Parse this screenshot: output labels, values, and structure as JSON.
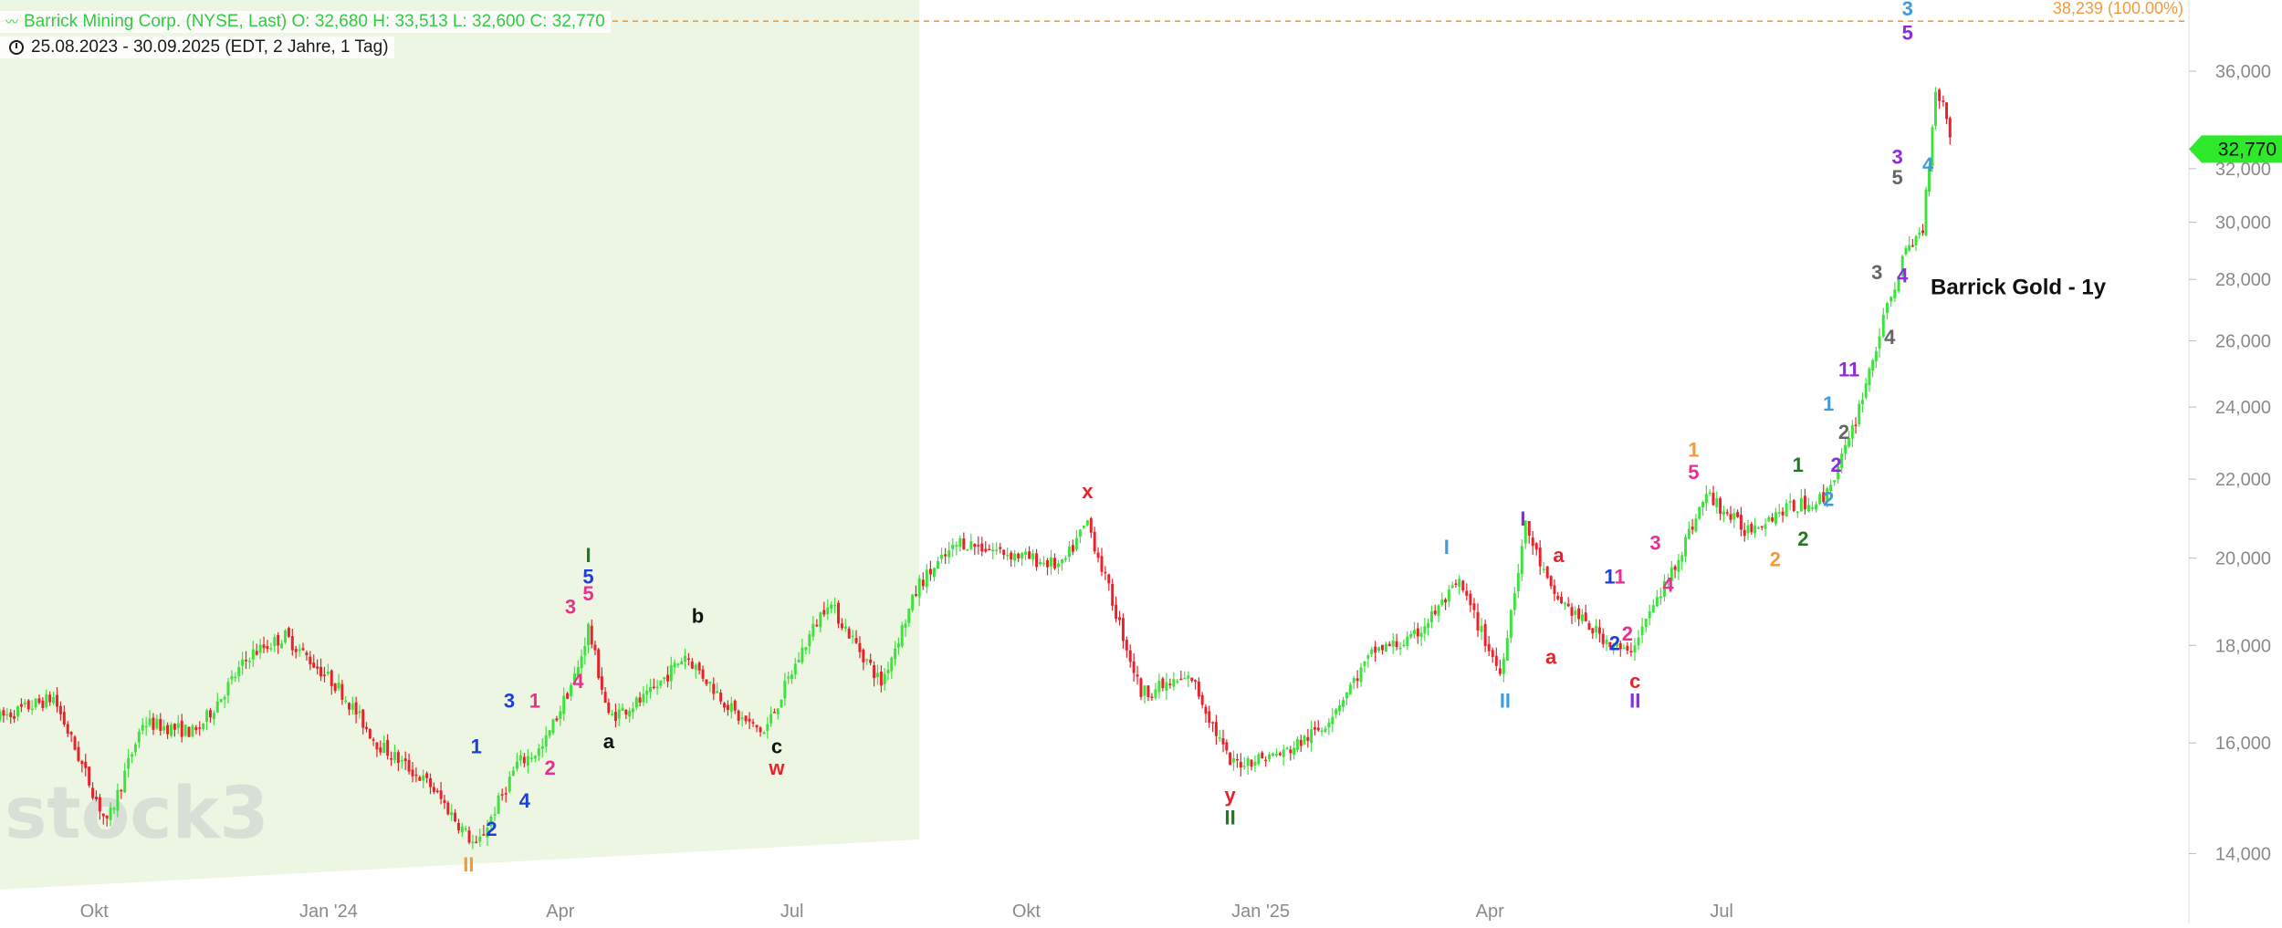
{
  "header": {
    "instrument_line": "Barrick Mining Corp. (NYSE, Last)  O: 32,680  H: 33,513  L: 32,600  C: 32,770",
    "range_line": "25.08.2023 - 30.09.2025  (EDT, 2 Jahre, 1 Tag)"
  },
  "watermark": "stock3",
  "colors": {
    "up_candle": "#3ee23e",
    "down_candle": "#e8212a",
    "shaded_region": "#edf6e2",
    "reference_line": "#f39a3b",
    "price_badge": "#2ee82a"
  },
  "chart_data": {
    "type": "candlestick",
    "title": "",
    "x_range": [
      "2023-08-25",
      "2025-09-30"
    ],
    "y_scale": "log",
    "y_range": [
      13300,
      38800
    ],
    "y_ticks": [
      14000,
      16000,
      18000,
      20000,
      22000,
      24000,
      26000,
      28000,
      30000,
      32000,
      36000
    ],
    "y_tick_labels": [
      "14,000",
      "16,000",
      "18,000",
      "20,000",
      "22,000",
      "24,000",
      "26,000",
      "28,000",
      "30,000",
      "32,000",
      "36,000"
    ],
    "x_ticks": [
      {
        "label": "Okt",
        "date": "2023-10-01"
      },
      {
        "label": "Jan '24",
        "date": "2024-01-01"
      },
      {
        "label": "Apr",
        "date": "2024-04-01"
      },
      {
        "label": "Jul",
        "date": "2024-07-01"
      },
      {
        "label": "Okt",
        "date": "2024-10-01"
      },
      {
        "label": "Jan '25",
        "date": "2025-01-01"
      },
      {
        "label": "Apr",
        "date": "2025-04-01"
      },
      {
        "label": "Jul",
        "date": "2025-07-01"
      }
    ],
    "last_price": 32770,
    "last_price_label": "32,770",
    "reference_level": 38239,
    "reference_label": "38,239 (100.00%)",
    "shaded_period": [
      "2023-08-25",
      "2024-08-20"
    ],
    "price_path": [
      [
        "2023-08-25",
        16500
      ],
      [
        "2023-09-15",
        16900
      ],
      [
        "2023-10-06",
        14500
      ],
      [
        "2023-10-20",
        16400
      ],
      [
        "2023-11-10",
        16200
      ],
      [
        "2023-12-01",
        17800
      ],
      [
        "2023-12-15",
        18200
      ],
      [
        "2024-01-05",
        17100
      ],
      [
        "2024-01-20",
        16000
      ],
      [
        "2024-02-10",
        15200
      ],
      [
        "2024-02-28",
        14100
      ],
      [
        "2024-03-15",
        15600
      ],
      [
        "2024-03-25",
        15900
      ],
      [
        "2024-04-08",
        17500
      ],
      [
        "2024-04-12",
        18400
      ],
      [
        "2024-04-20",
        16500
      ],
      [
        "2024-05-05",
        16900
      ],
      [
        "2024-05-20",
        17800
      ],
      [
        "2024-06-10",
        16500
      ],
      [
        "2024-06-20",
        16200
      ],
      [
        "2024-07-05",
        17900
      ],
      [
        "2024-07-15",
        19000
      ],
      [
        "2024-08-05",
        17200
      ],
      [
        "2024-08-20",
        19400
      ],
      [
        "2024-09-05",
        20400
      ],
      [
        "2024-09-25",
        20100
      ],
      [
        "2024-10-15",
        19800
      ],
      [
        "2024-10-25",
        20900
      ],
      [
        "2024-11-15",
        17000
      ],
      [
        "2024-12-05",
        17300
      ],
      [
        "2024-12-20",
        15600
      ],
      [
        "2025-01-10",
        15800
      ],
      [
        "2025-01-25",
        16300
      ],
      [
        "2025-02-15",
        17900
      ],
      [
        "2025-03-01",
        18100
      ],
      [
        "2025-03-20",
        19400
      ],
      [
        "2025-04-05",
        17400
      ],
      [
        "2025-04-15",
        20800
      ],
      [
        "2025-04-25",
        19200
      ],
      [
        "2025-05-10",
        18400
      ],
      [
        "2025-05-25",
        17800
      ],
      [
        "2025-06-10",
        19500
      ],
      [
        "2025-06-25",
        21600
      ],
      [
        "2025-07-10",
        20700
      ],
      [
        "2025-07-25",
        21200
      ],
      [
        "2025-08-10",
        21500
      ],
      [
        "2025-08-20",
        23000
      ],
      [
        "2025-09-01",
        26200
      ],
      [
        "2025-09-10",
        28700
      ],
      [
        "2025-09-18",
        29800
      ],
      [
        "2025-09-23",
        35200
      ],
      [
        "2025-09-26",
        34600
      ],
      [
        "2025-09-30",
        32770
      ]
    ],
    "wave_labels": [
      {
        "text": "II",
        "date": "2024-02-25",
        "price": 13700,
        "color": "#f39a3b"
      },
      {
        "text": "1",
        "date": "2024-02-28",
        "price": 15800,
        "color": "#1f3ed6"
      },
      {
        "text": "2",
        "date": "2024-03-05",
        "price": 14300,
        "color": "#1f3ed6"
      },
      {
        "text": "3",
        "date": "2024-03-12",
        "price": 16700,
        "color": "#1f3ed6"
      },
      {
        "text": "4",
        "date": "2024-03-18",
        "price": 14800,
        "color": "#1f3ed6"
      },
      {
        "text": "1",
        "date": "2024-03-22",
        "price": 16700,
        "color": "#e8308f"
      },
      {
        "text": "2",
        "date": "2024-03-28",
        "price": 15400,
        "color": "#e8308f"
      },
      {
        "text": "3",
        "date": "2024-04-05",
        "price": 18700,
        "color": "#e8308f"
      },
      {
        "text": "4",
        "date": "2024-04-08",
        "price": 17100,
        "color": "#e8308f"
      },
      {
        "text": "5",
        "date": "2024-04-12",
        "price": 19000,
        "color": "#e8308f"
      },
      {
        "text": "5",
        "date": "2024-04-12",
        "price": 19400,
        "color": "#1f3ed6"
      },
      {
        "text": "I",
        "date": "2024-04-12",
        "price": 19900,
        "color": "#1f7a1f"
      },
      {
        "text": "a",
        "date": "2024-04-20",
        "price": 15900,
        "color": "#111111"
      },
      {
        "text": "b",
        "date": "2024-05-25",
        "price": 18500,
        "color": "#111111"
      },
      {
        "text": "c",
        "date": "2024-06-25",
        "price": 15800,
        "color": "#111111"
      },
      {
        "text": "w",
        "date": "2024-06-25",
        "price": 15400,
        "color": "#e8212a"
      },
      {
        "text": "x",
        "date": "2024-10-25",
        "price": 21500,
        "color": "#e8212a"
      },
      {
        "text": "y",
        "date": "2024-12-20",
        "price": 14900,
        "color": "#e8212a"
      },
      {
        "text": "II",
        "date": "2024-12-20",
        "price": 14500,
        "color": "#1f7a1f"
      },
      {
        "text": "I",
        "date": "2025-03-15",
        "price": 20100,
        "color": "#3f9be0"
      },
      {
        "text": "II",
        "date": "2025-04-07",
        "price": 16700,
        "color": "#3f9be0"
      },
      {
        "text": "I",
        "date": "2025-04-14",
        "price": 20800,
        "color": "#8e2be2"
      },
      {
        "text": "a",
        "date": "2025-04-28",
        "price": 19900,
        "color": "#e8212a"
      },
      {
        "text": "a",
        "date": "2025-04-25",
        "price": 17600,
        "color": "#e8212a"
      },
      {
        "text": "1",
        "date": "2025-05-18",
        "price": 19400,
        "color": "#1f3ed6"
      },
      {
        "text": "1",
        "date": "2025-05-22",
        "price": 19400,
        "color": "#e8308f"
      },
      {
        "text": "2",
        "date": "2025-05-20",
        "price": 17900,
        "color": "#1f3ed6"
      },
      {
        "text": "2",
        "date": "2025-05-25",
        "price": 18100,
        "color": "#e8308f"
      },
      {
        "text": "c",
        "date": "2025-05-28",
        "price": 17100,
        "color": "#e8212a"
      },
      {
        "text": "II",
        "date": "2025-05-28",
        "price": 16700,
        "color": "#8e2be2"
      },
      {
        "text": "3",
        "date": "2025-06-05",
        "price": 20200,
        "color": "#e8308f"
      },
      {
        "text": "4",
        "date": "2025-06-10",
        "price": 19200,
        "color": "#e8308f"
      },
      {
        "text": "5",
        "date": "2025-06-20",
        "price": 22000,
        "color": "#e8308f"
      },
      {
        "text": "1",
        "date": "2025-06-20",
        "price": 22600,
        "color": "#f39a3b"
      },
      {
        "text": "2",
        "date": "2025-07-22",
        "price": 19800,
        "color": "#f39a3b"
      },
      {
        "text": "1",
        "date": "2025-07-31",
        "price": 22200,
        "color": "#1f7a1f"
      },
      {
        "text": "2",
        "date": "2025-08-02",
        "price": 20300,
        "color": "#1f7a1f"
      },
      {
        "text": "2",
        "date": "2025-08-12",
        "price": 21300,
        "color": "#3f9be0"
      },
      {
        "text": "1",
        "date": "2025-08-12",
        "price": 23900,
        "color": "#3f9be0"
      },
      {
        "text": "2",
        "date": "2025-08-15",
        "price": 22200,
        "color": "#8e2be2"
      },
      {
        "text": "2",
        "date": "2025-08-18",
        "price": 23100,
        "color": "#666666"
      },
      {
        "text": "11",
        "date": "2025-08-20",
        "price": 24900,
        "color": "#8e2be2"
      },
      {
        "text": "3",
        "date": "2025-08-31",
        "price": 28000,
        "color": "#666666"
      },
      {
        "text": "4",
        "date": "2025-09-05",
        "price": 25900,
        "color": "#666666"
      },
      {
        "text": "5",
        "date": "2025-09-08",
        "price": 31400,
        "color": "#666666"
      },
      {
        "text": "3",
        "date": "2025-09-08",
        "price": 32200,
        "color": "#8e2be2"
      },
      {
        "text": "4",
        "date": "2025-09-10",
        "price": 27900,
        "color": "#8e2be2"
      },
      {
        "text": "5",
        "date": "2025-09-12",
        "price": 37400,
        "color": "#8e2be2"
      },
      {
        "text": "3",
        "date": "2025-09-12",
        "price": 38500,
        "color": "#3f9be0"
      },
      {
        "text": "4",
        "date": "2025-09-20",
        "price": 31900,
        "color": "#3f9be0"
      }
    ],
    "annotation": "Barrick Gold - 1y"
  }
}
